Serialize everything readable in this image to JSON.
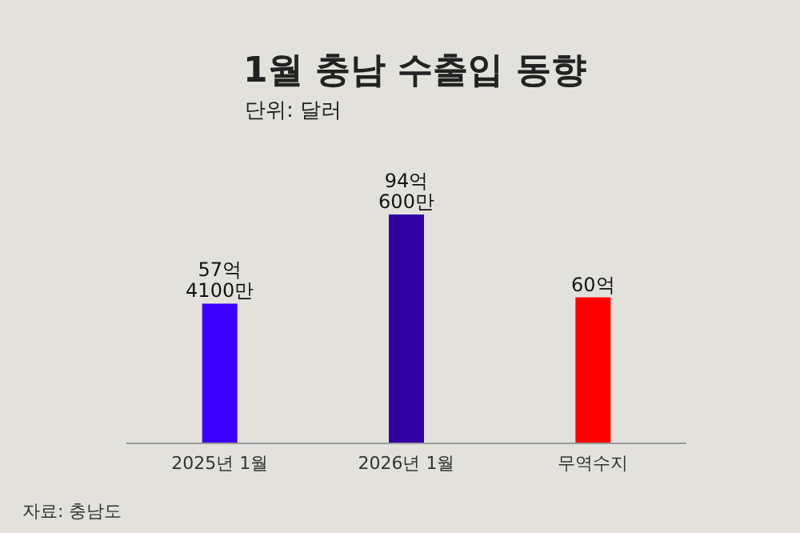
{
  "chart_data": {
    "type": "bar",
    "title": "1월  충남 수출입 동향",
    "subtitle": "단위: 달러",
    "categories": [
      "2025년 1월",
      "2026년 1월",
      "무역수지"
    ],
    "values": [
      57.41,
      94.06,
      60
    ],
    "colors": [
      "#3a00ff",
      "#3000a3",
      "#ff0000"
    ],
    "value_labels": [
      "57억 4100만",
      "94억 600만",
      "60억"
    ],
    "annotations": [
      "자료: 충남도"
    ]
  }
}
